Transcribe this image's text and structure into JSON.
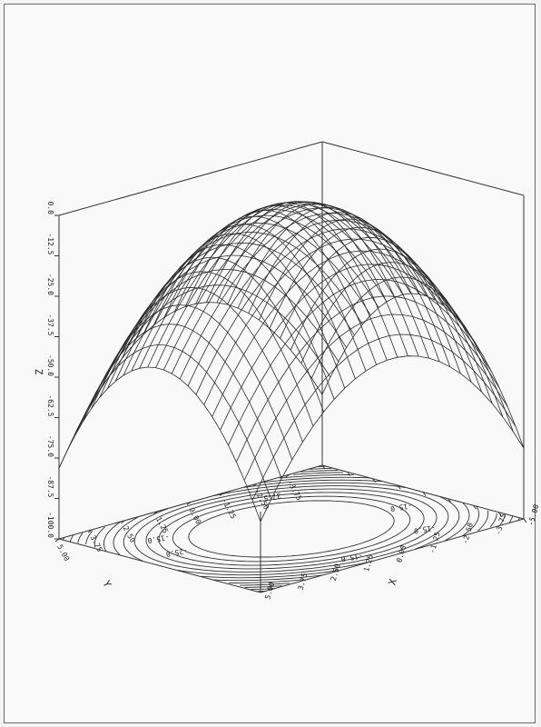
{
  "chart_data": {
    "type": "surface",
    "function": "z = -(x^2 + y^2) * 1.5625",
    "x": [
      -5.0,
      -3.75,
      -2.5,
      -1.25,
      0.0,
      1.25,
      2.5,
      3.75,
      5.0
    ],
    "y": [
      -5.0,
      -3.75,
      -2.5,
      -1.25,
      0.0,
      1.25,
      2.5,
      3.75,
      5.0
    ],
    "xlim": [
      -5,
      5
    ],
    "ylim": [
      -5,
      5
    ],
    "zlim": [
      -100,
      0
    ],
    "grid_n": 25,
    "contour_levels": [
      -15,
      -20,
      -25,
      -30,
      -35,
      -40,
      -45,
      -50,
      -55,
      -60,
      -65,
      -70,
      -75,
      -80,
      -85,
      -90
    ],
    "xlabel": "X",
    "ylabel": "Y",
    "zlabel": "Z",
    "x_tick_labels": [
      "-5.00",
      "-3.75",
      "-2.50",
      "-1.25",
      "0.00",
      "1.25",
      "2.50",
      "3.75",
      "5.00"
    ],
    "y_tick_labels": [
      "-3.75",
      "-2.50",
      "-1.25",
      "0.00",
      "1.25",
      "2.50",
      "3.75",
      "5.00"
    ],
    "z_tick_labels": [
      "-100.0",
      "-87.5",
      "-75.0",
      "-62.5",
      "-50.0",
      "-37.5",
      "-25.0",
      "-12.5",
      "0.0"
    ],
    "contour_text_labels": [
      "-15.0",
      "-15.0",
      "-25.0",
      "-15.0",
      "-15.0",
      "-37.5"
    ]
  }
}
